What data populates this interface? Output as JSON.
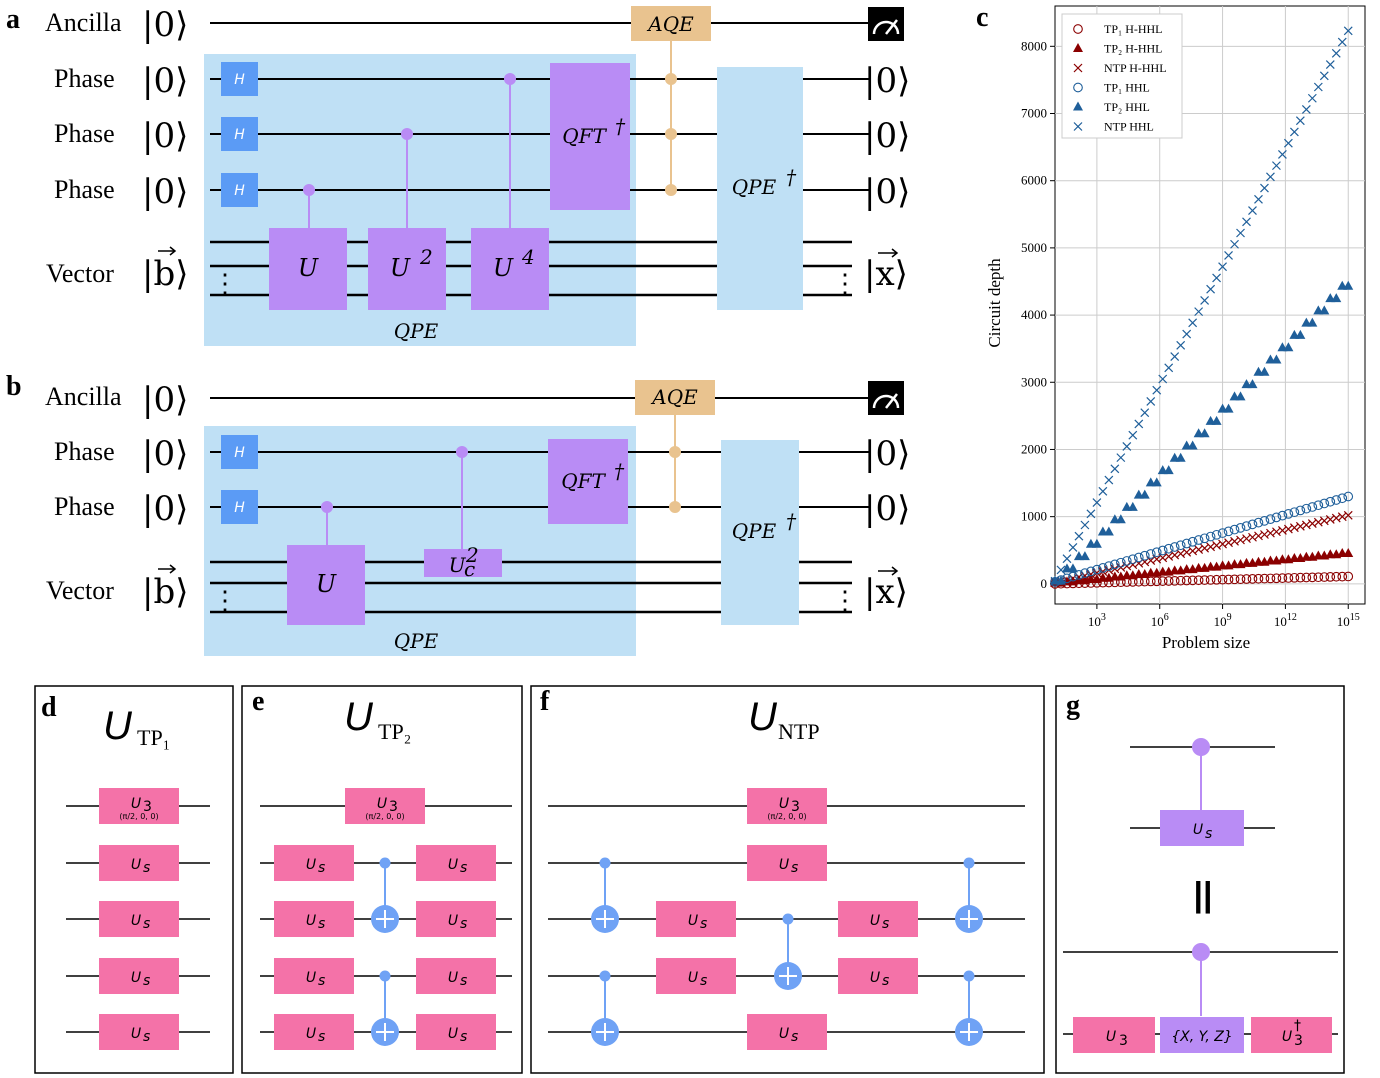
{
  "colors": {
    "qpe_bg": "#bfe0f5",
    "h_gate": "#5b9bf5",
    "purple_gate": "#b98cf5",
    "aqe_gate": "#e9c38f",
    "pink_gate": "#f472a8",
    "control_blue": "#6fa2f5",
    "tp_color": "#8b0000",
    "hhl_color": "#1f5f9a"
  },
  "panels": {
    "a": "a",
    "b": "b",
    "c": "c",
    "d": "d",
    "e": "e",
    "f": "f",
    "g": "g"
  },
  "circuit_a": {
    "labels": [
      "Ancilla",
      "Phase",
      "Phase",
      "Phase",
      "Vector"
    ],
    "kets_in": [
      "|0⟩",
      "|0⟩",
      "|0⟩",
      "|0⟩"
    ],
    "ket_b": "|b⟩",
    "kets_out": [
      "|0⟩",
      "|0⟩",
      "|0⟩"
    ],
    "ket_x": "|x⟩",
    "h": "H",
    "u1": "U",
    "u2": "U",
    "u2_exp": "2",
    "u4": "U",
    "u4_exp": "4",
    "qft": "QFT",
    "dagger": "†",
    "aqe": "AQE",
    "qpe_inv": "QPE",
    "qpe": "QPE"
  },
  "circuit_b": {
    "labels": [
      "Ancilla",
      "Phase",
      "Phase",
      "Vector"
    ],
    "kets_in": [
      "|0⟩",
      "|0⟩",
      "|0⟩"
    ],
    "ket_b": "|b⟩",
    "kets_out": [
      "|0⟩",
      "|0⟩"
    ],
    "ket_x": "|x⟩",
    "h": "H",
    "u": "U",
    "uc": "U",
    "uc_sub": "c",
    "uc_exp": "2",
    "qft": "QFT",
    "dagger": "†",
    "aqe": "AQE",
    "qpe_inv": "QPE",
    "qpe": "QPE"
  },
  "chart_data": {
    "type": "scatter",
    "xlabel": "Problem size",
    "ylabel": "Circuit depth",
    "x_scale": "log",
    "x_ticks": [
      "10^3",
      "10^6",
      "10^9",
      "10^12",
      "10^15"
    ],
    "ylim": [
      -300,
      8600
    ],
    "y_ticks": [
      0,
      1000,
      2000,
      3000,
      4000,
      5000,
      6000,
      7000,
      8000
    ],
    "grid": true,
    "legend_position": "top-left",
    "x_log10_range": [
      1,
      15
    ],
    "series": [
      {
        "name": "TP₁ H-HHL",
        "marker": "circle-open",
        "color": "#8b0000",
        "endpoints": [
          [
            1,
            0
          ],
          [
            15,
            110
          ]
        ]
      },
      {
        "name": "TP₂ H-HHL",
        "marker": "triangle",
        "color": "#8b0000",
        "endpoints": [
          [
            1,
            10
          ],
          [
            15,
            460
          ]
        ]
      },
      {
        "name": "NTP H-HHL",
        "marker": "x",
        "color": "#8b0000",
        "endpoints": [
          [
            1,
            20
          ],
          [
            15,
            1020
          ]
        ]
      },
      {
        "name": "TP₁ HHL",
        "marker": "circle-open",
        "color": "#1f5f9a",
        "endpoints": [
          [
            1,
            30
          ],
          [
            15,
            1300
          ]
        ]
      },
      {
        "name": "TP₂ HHL",
        "marker": "triangle",
        "color": "#1f5f9a",
        "endpoints": [
          [
            1,
            40
          ],
          [
            15,
            4520
          ]
        ]
      },
      {
        "name": "NTP HHL",
        "marker": "x",
        "color": "#1f5f9a",
        "endpoints": [
          [
            1,
            40
          ],
          [
            15,
            8230
          ]
        ]
      }
    ]
  },
  "panel_d": {
    "title": "U",
    "sub": "TP₁",
    "u3": "U",
    "u3_sub": "3",
    "u3_params": "(π/2, 0, 0)",
    "us": "U",
    "us_sub": "s"
  },
  "panel_e": {
    "title": "U",
    "sub": "TP₂",
    "u3": "U",
    "u3_sub": "3",
    "u3_params": "(π/2, 0, 0)",
    "us": "U",
    "us_sub": "s"
  },
  "panel_f": {
    "title": "U",
    "sub": "NTP",
    "u3": "U",
    "u3_sub": "3",
    "u3_params": "(π/2, 0, 0)",
    "us": "U",
    "us_sub": "s"
  },
  "panel_g": {
    "us": "U",
    "us_sub": "s",
    "equals": "||",
    "u3": "U",
    "u3_sub": "3",
    "pauli": "{X, Y, Z}",
    "u3d": "U",
    "u3d_sub": "3",
    "u3d_sup": "†"
  }
}
